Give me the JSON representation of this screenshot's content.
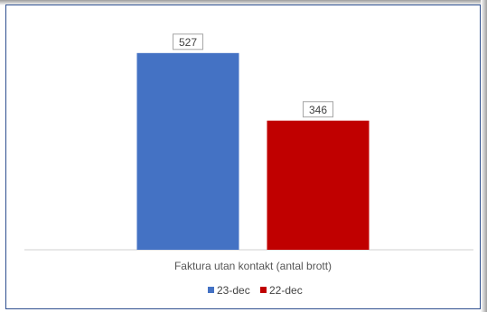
{
  "chart_data": {
    "type": "bar",
    "categories": [
      "Faktura utan kontakt (antal brott)"
    ],
    "series": [
      {
        "name": "23-dec",
        "values": [
          527
        ],
        "color": "#4472c4"
      },
      {
        "name": "22-dec",
        "values": [
          346
        ],
        "color": "#c00000"
      }
    ],
    "title": "",
    "xlabel": "",
    "ylabel": "",
    "ylim": [
      0,
      600
    ],
    "grid": false,
    "legend": "bottom"
  }
}
